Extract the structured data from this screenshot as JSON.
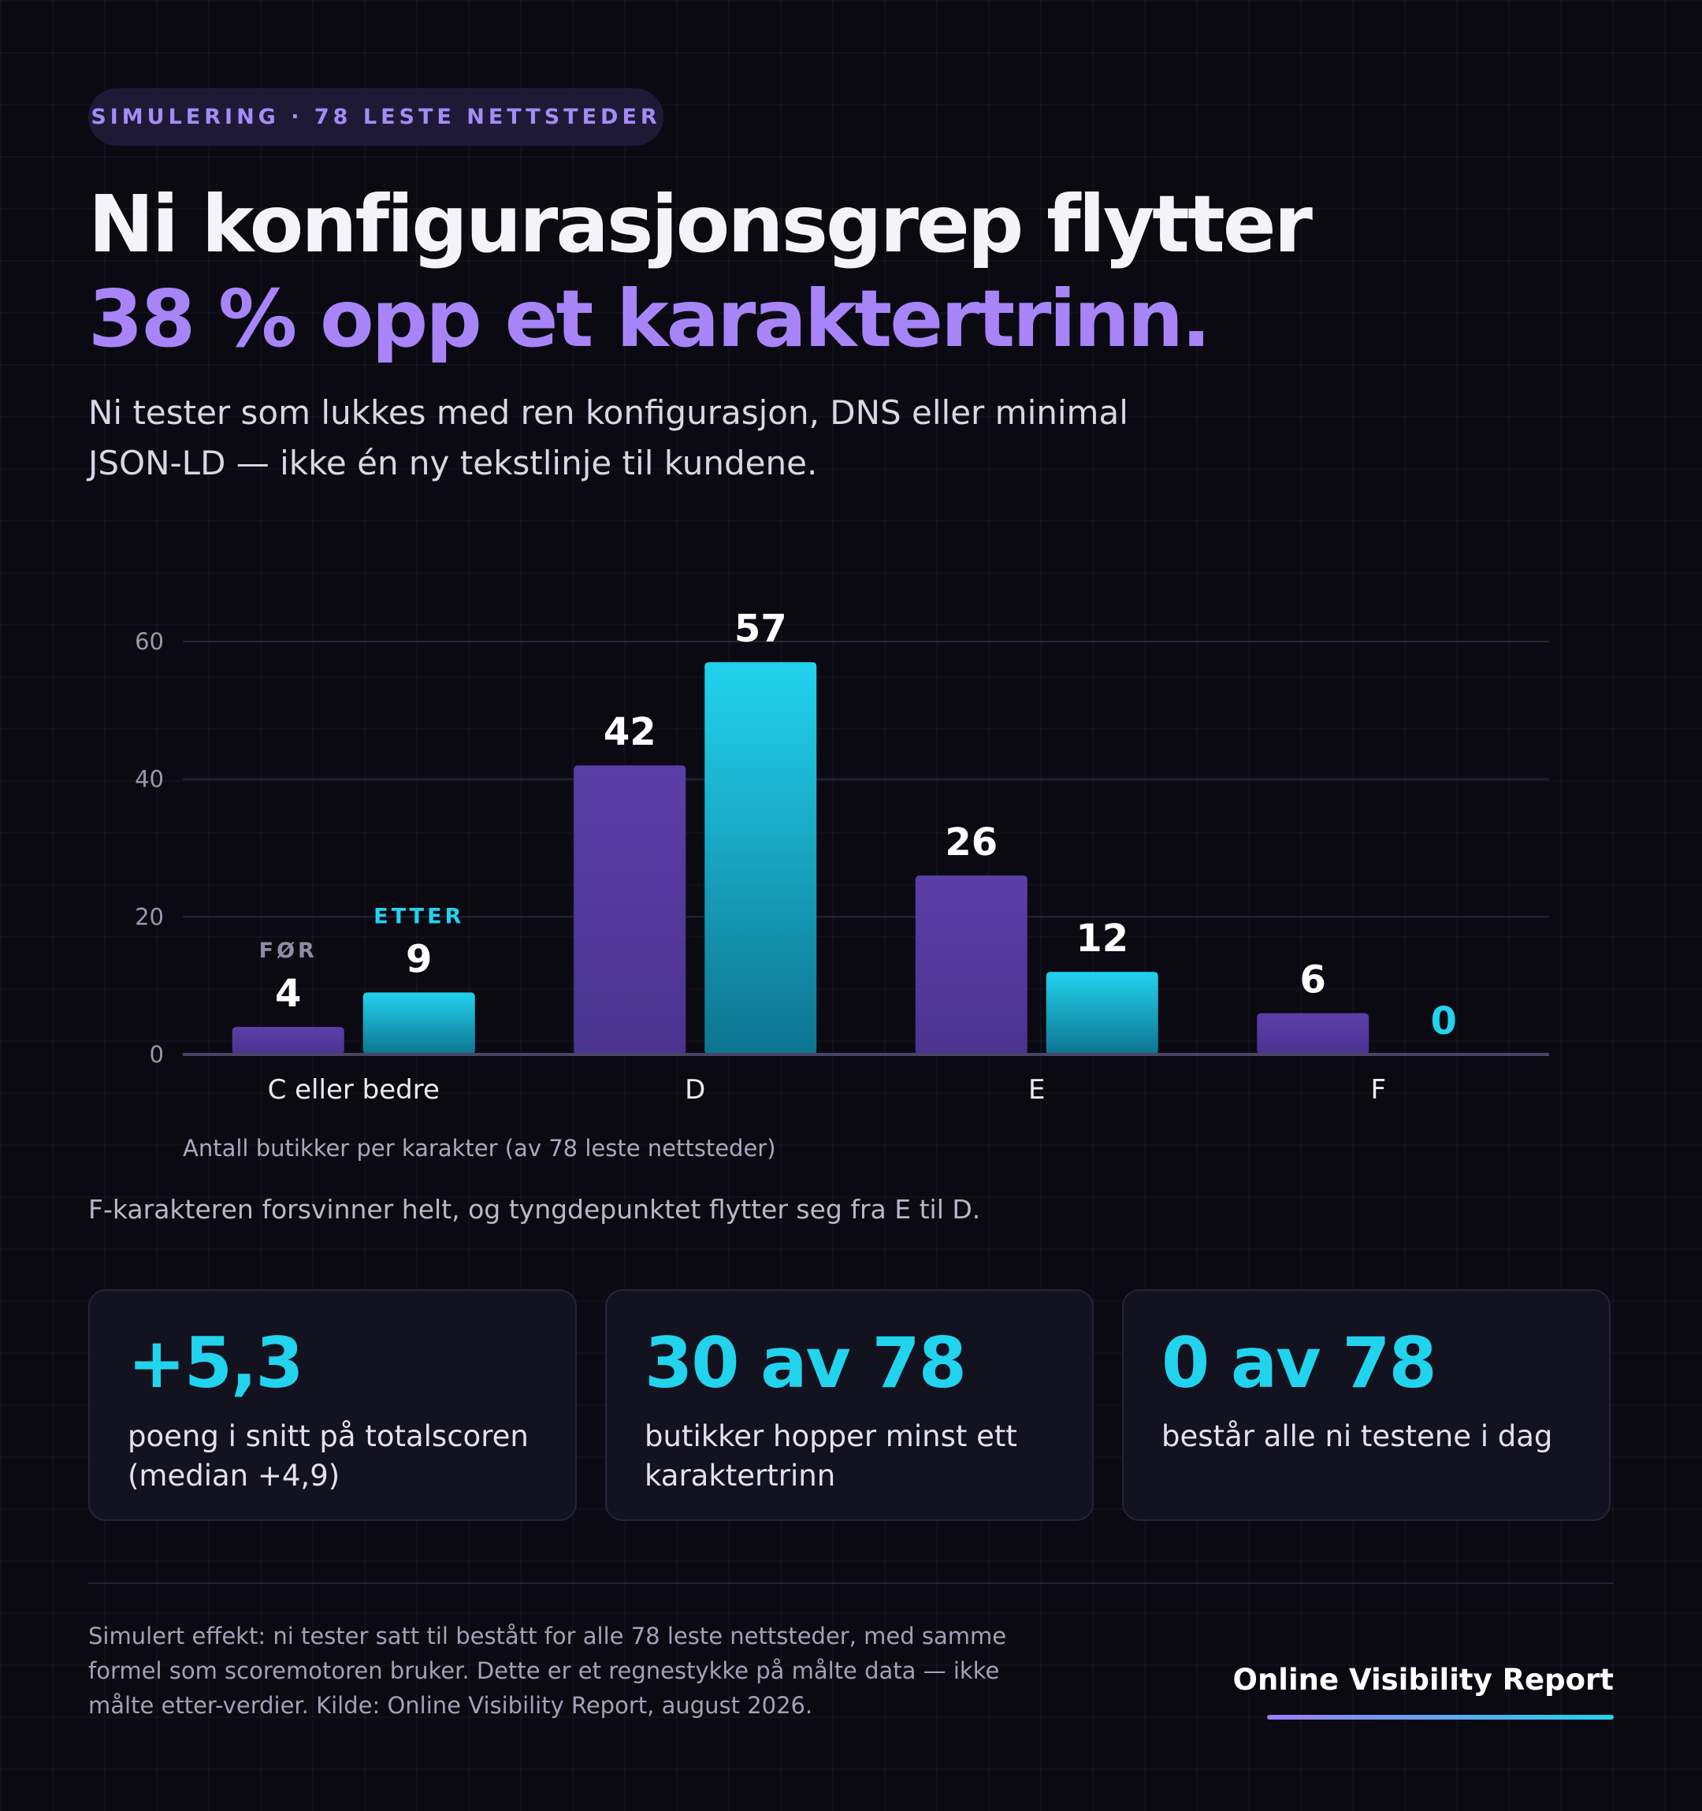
{
  "badge": "SIMULERING · 78 LESTE NETTSTEDER",
  "title": {
    "line1": "Ni konfigurasjonsgrep flytter",
    "line2": "38 % opp et karaktertrinn."
  },
  "subtitle": "Ni tester som lukkes med ren konfigurasjon, DNS eller minimal JSON-LD — ikke én ny tekstlinje til kundene.",
  "chart_data": {
    "type": "bar",
    "title": "",
    "xlabel": "Antall butikker per karakter (av 78 leste nettsteder)",
    "ylabel": "",
    "categories": [
      "C eller bedre",
      "D",
      "E",
      "F"
    ],
    "series": [
      {
        "name": "FØR",
        "values": [
          4,
          42,
          26,
          6
        ],
        "color": "#5a3ea6"
      },
      {
        "name": "ETTER",
        "values": [
          9,
          57,
          12,
          0
        ],
        "color": "#22d3ee"
      }
    ],
    "ylim": [
      0,
      60
    ],
    "yticks": [
      0,
      20,
      40,
      60
    ],
    "grid": true,
    "legend": "inline-above-first-group"
  },
  "insight": "F-karakteren forsvinner helt, og tyngdepunktet flytter seg fra E til D.",
  "cards": [
    {
      "value": "+5,3",
      "text": "poeng i snitt på totalscoren (median +4,9)"
    },
    {
      "value": "30 av 78",
      "text": "butikker hopper minst ett karaktertrinn"
    },
    {
      "value": "0 av 78",
      "text": "består alle ni testene i dag"
    }
  ],
  "footnote": "Simulert effekt: ni tester satt til bestått for alle 78 leste nettsteder, med samme formel som scoremotoren bruker. Dette er et regnestykke på målte data — ikke målte etter-verdier. Kilde: Online Visibility Report, august 2026.",
  "brand": "Online Visibility Report",
  "colors": {
    "accent_purple": "#a785f8",
    "accent_cyan": "#22d3ee",
    "background": "#0b0a13"
  }
}
